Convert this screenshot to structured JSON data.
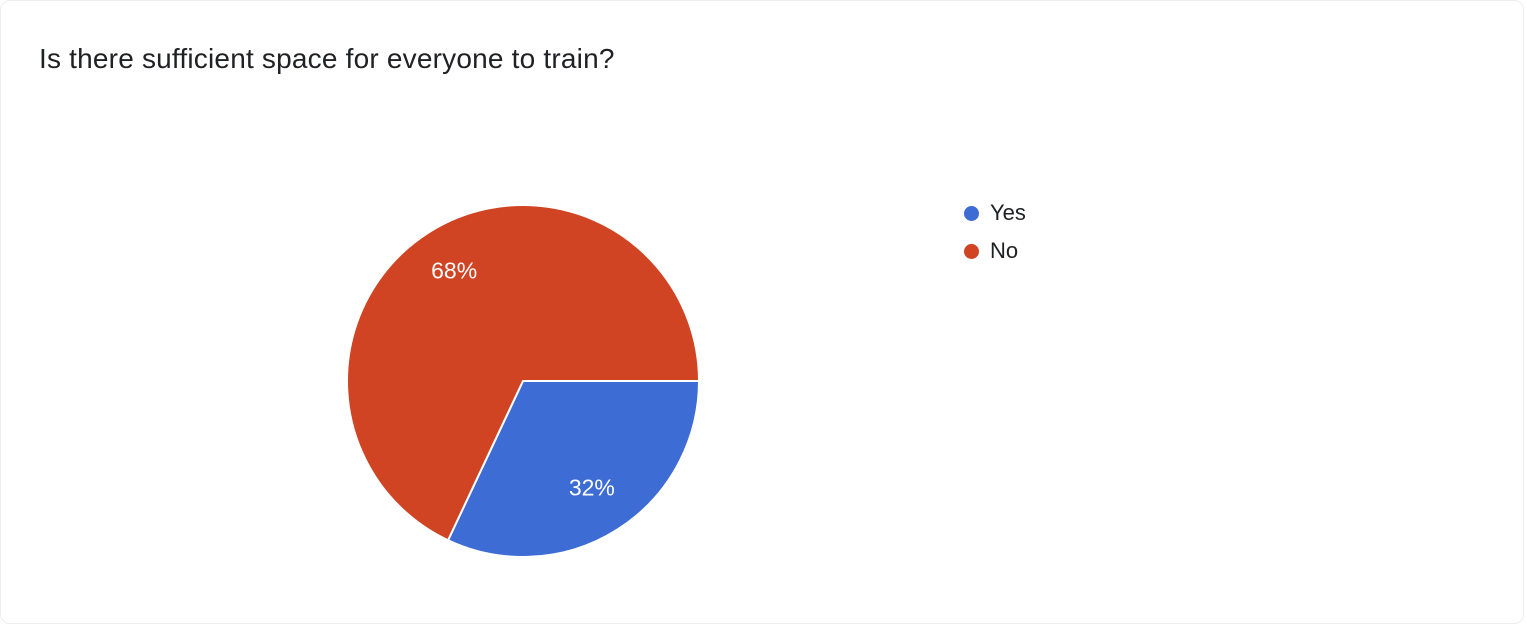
{
  "title": "Is there sufficient space for everyone to train?",
  "chart_data": {
    "type": "pie",
    "labels": [
      "Yes",
      "No"
    ],
    "values": [
      32,
      68
    ],
    "unit": "%",
    "colors": [
      "#3d6cd5",
      "#d04424"
    ],
    "slice_label_color": "#ffffff",
    "legend_position": "right",
    "start_angle_deg": 0,
    "direction": "clockwise",
    "title": "Is there sufficient space for everyone to train?"
  }
}
